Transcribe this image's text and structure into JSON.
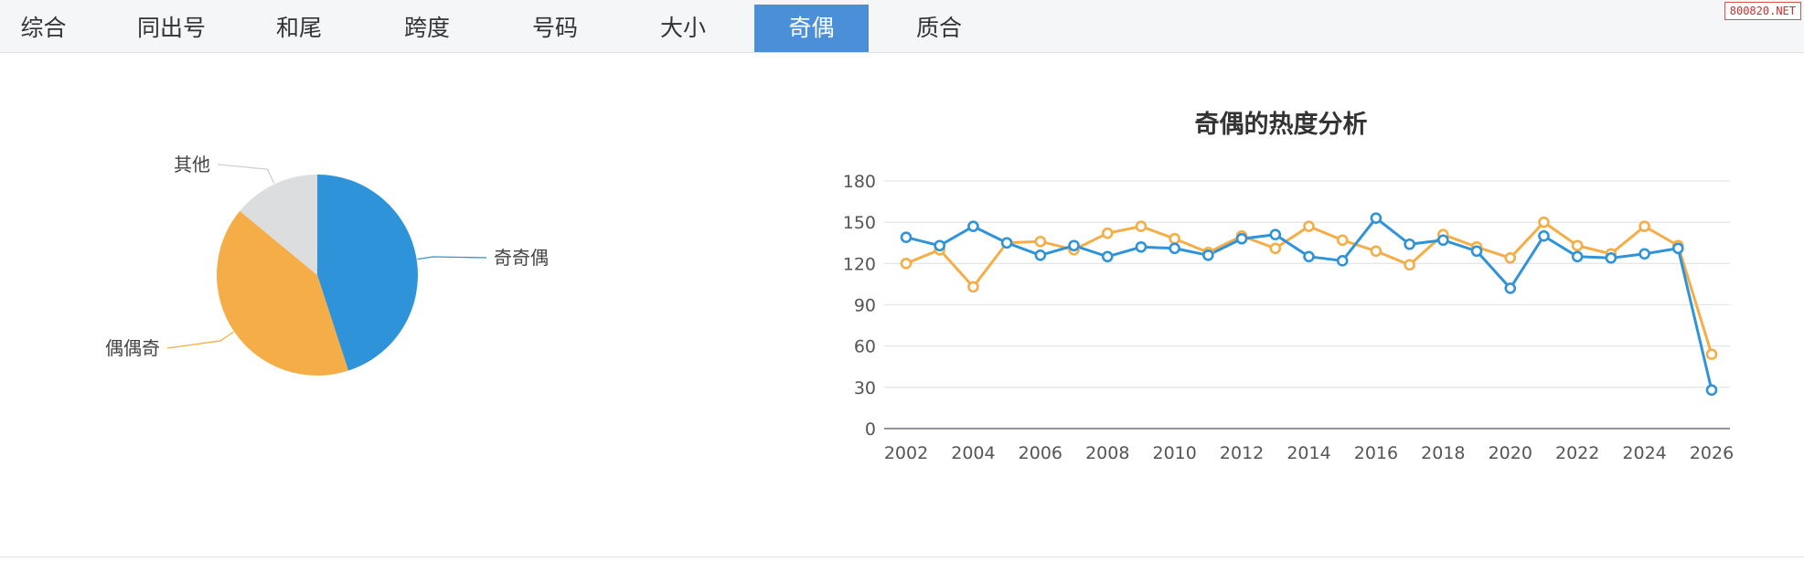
{
  "tabs": [
    {
      "label": "综合",
      "active": false
    },
    {
      "label": "同出号",
      "active": false
    },
    {
      "label": "和尾",
      "active": false
    },
    {
      "label": "跨度",
      "active": false
    },
    {
      "label": "号码",
      "active": false
    },
    {
      "label": "大小",
      "active": false
    },
    {
      "label": "奇偶",
      "active": true
    },
    {
      "label": "质合",
      "active": false
    }
  ],
  "watermark": "800820.NET",
  "colors": {
    "blue": "#2f93d9",
    "orange": "#f5ae47",
    "gray": "#dcdddf",
    "tab_active": "#4b8fd9"
  },
  "chart_data": [
    {
      "type": "pie",
      "categories": [
        "奇奇偶",
        "偶偶奇",
        "其他"
      ],
      "values": [
        45,
        41,
        14
      ],
      "colors": [
        "#2f93d9",
        "#f5ae47",
        "#dcdddf"
      ]
    },
    {
      "type": "line",
      "title": "奇偶的热度分析",
      "x": [
        2002,
        2003,
        2004,
        2005,
        2006,
        2007,
        2008,
        2009,
        2010,
        2011,
        2012,
        2013,
        2014,
        2015,
        2016,
        2017,
        2018,
        2019,
        2020,
        2021,
        2022,
        2023,
        2024,
        2025,
        2026
      ],
      "xticks": [
        "2002",
        "2004",
        "2006",
        "2008",
        "2010",
        "2012",
        "2014",
        "2016",
        "2018",
        "2020",
        "2022",
        "2024",
        "2026"
      ],
      "yticks": [
        "0",
        "30",
        "60",
        "90",
        "120",
        "150",
        "180"
      ],
      "ylim": [
        0,
        180
      ],
      "grid": true,
      "series": [
        {
          "color": "#2f93d9",
          "values": [
            139,
            133,
            147,
            135,
            126,
            133,
            125,
            132,
            131,
            126,
            138,
            141,
            125,
            122,
            153,
            134,
            137,
            129,
            102,
            140,
            125,
            124,
            127,
            131,
            28
          ]
        },
        {
          "color": "#f5ae47",
          "values": [
            120,
            130,
            103,
            135,
            136,
            130,
            142,
            147,
            138,
            128,
            140,
            131,
            147,
            137,
            129,
            119,
            141,
            132,
            124,
            150,
            133,
            127,
            147,
            133,
            54
          ]
        }
      ]
    }
  ]
}
